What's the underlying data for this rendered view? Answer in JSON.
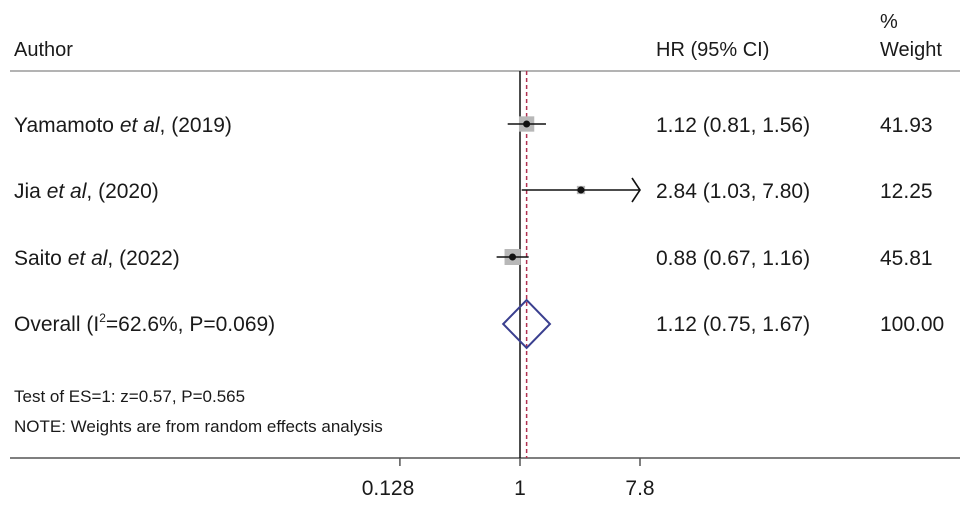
{
  "header": {
    "author": "Author",
    "hr": "HR (95% CI)",
    "weight_pct": "%",
    "weight": "Weight"
  },
  "studies": [
    {
      "name": "Yamamoto",
      "etal": "et al",
      "year": ", (2019)",
      "hr_text": "1.12 (0.81, 1.56)",
      "weight_text": "41.93"
    },
    {
      "name": "Jia",
      "etal": "et al",
      "year": ", (2020)",
      "hr_text": "2.84 (1.03, 7.80)",
      "weight_text": "12.25"
    },
    {
      "name": "Saito",
      "etal": "et al",
      "year": ", (2022)",
      "hr_text": "0.88 (0.67, 1.16)",
      "weight_text": "45.81"
    }
  ],
  "overall": {
    "label_pre": "Overall (I",
    "label_sup": "2",
    "label_post": "=62.6%, P=0.069)",
    "hr_text": "1.12 (0.75, 1.67)",
    "weight_text": "100.00"
  },
  "footnotes": {
    "test": "Test of ES=1: z=0.57, P=0.565",
    "note": "NOTE: Weights are from random effects analysis"
  },
  "axis_ticks": [
    "0.128",
    "1",
    "7.8"
  ],
  "colors": {
    "text": "#1a1a1a",
    "ci_line": "#111111",
    "weight_box": "#b8b8b8",
    "diamond": "#3a3f8f",
    "overall_ref": "#b03050",
    "rules": "#9a9a9a"
  },
  "chart_data": {
    "type": "forest",
    "x_scale": "log",
    "xlim": [
      0.128,
      7.8
    ],
    "ticks": [
      0.128,
      1,
      7.8
    ],
    "null_line": 1,
    "overall_line": 1.12,
    "series": [
      {
        "name": "Yamamoto et al, (2019)",
        "hr": 1.12,
        "lo": 0.81,
        "hi": 1.56,
        "weight": 41.93
      },
      {
        "name": "Jia et al, (2020)",
        "hr": 2.84,
        "lo": 1.03,
        "hi": 7.8,
        "weight": 12.25,
        "arrow_right": true
      },
      {
        "name": "Saito et al, (2022)",
        "hr": 0.88,
        "lo": 0.67,
        "hi": 1.16,
        "weight": 45.81
      }
    ],
    "overall": {
      "hr": 1.12,
      "lo": 0.75,
      "hi": 1.67,
      "weight": 100.0
    }
  }
}
